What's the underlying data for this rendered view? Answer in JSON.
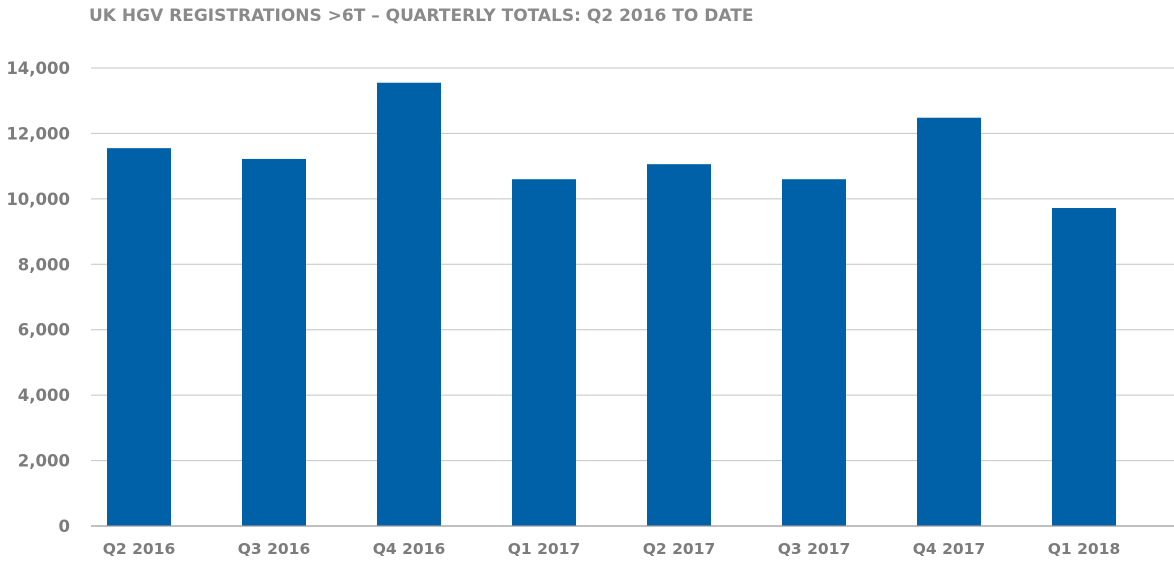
{
  "chart_data": {
    "type": "bar",
    "title": "UK HGV REGISTRATIONS >6T – QUARTERLY TOTALS: Q2 2016 TO DATE",
    "xlabel": "",
    "ylabel": "",
    "categories": [
      "Q2 2016",
      "Q3 2016",
      "Q4 2016",
      "Q1 2017",
      "Q2 2017",
      "Q3 2017",
      "Q4 2017",
      "Q1 2018"
    ],
    "values": [
      11550,
      11220,
      13550,
      10600,
      11060,
      10600,
      12480,
      9720
    ],
    "ylim": [
      0,
      14000
    ],
    "yticks": [
      0,
      2000,
      4000,
      6000,
      8000,
      10000,
      12000,
      14000
    ],
    "ytick_labels": [
      "0",
      "2,000",
      "4,000",
      "6,000",
      "8,000",
      "10,000",
      "12,000",
      "14,000"
    ],
    "grid": true,
    "legend": "none",
    "bar_color": "#0060a8"
  }
}
